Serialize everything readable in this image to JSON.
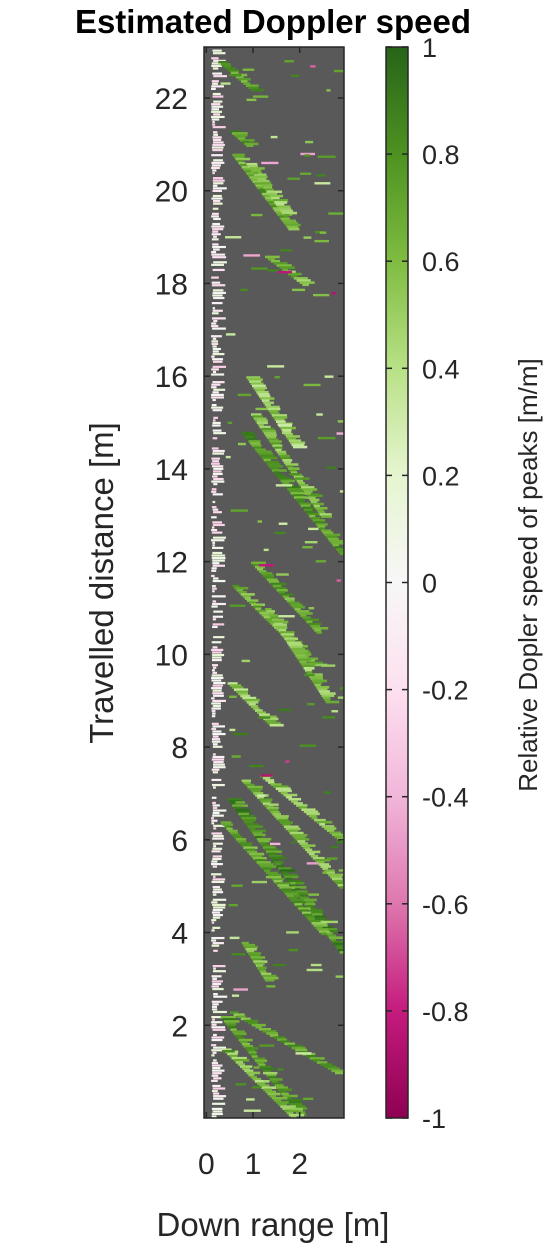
{
  "chart_data": {
    "type": "heatmap",
    "title": "Estimated Doppler speed",
    "xlabel": "Down range [m]",
    "ylabel": "Travelled distance [m]",
    "colorbar_label": "Relative Dopler speed of peaks [m/m]",
    "xlim": [
      -0.05,
      2.95
    ],
    "ylim": [
      0,
      23.1
    ],
    "x_ticks": [
      0,
      1,
      2
    ],
    "x_tick_labels": [
      "0",
      "1",
      "2"
    ],
    "y_ticks": [
      2,
      4,
      6,
      8,
      10,
      12,
      14,
      16,
      18,
      20,
      22
    ],
    "y_tick_labels": [
      "2",
      "4",
      "6",
      "8",
      "10",
      "12",
      "14",
      "16",
      "18",
      "20",
      "22"
    ],
    "clim": [
      -1,
      1
    ],
    "colorbar_ticks": [
      1,
      0.8,
      0.6,
      0.4,
      0.2,
      0,
      -0.2,
      -0.4,
      -0.6,
      -0.8,
      -1
    ],
    "colorbar_tick_labels": [
      "1",
      "0.8",
      "0.6",
      "0.4",
      "0.2",
      "0",
      "-0.2",
      "-0.4",
      "-0.6",
      "-0.8",
      "-1"
    ],
    "background_color": "#595959",
    "colormap": [
      "#8e0152",
      "#c51b7d",
      "#de77ae",
      "#f1b6da",
      "#fde0ef",
      "#f7f7f7",
      "#e6f5d0",
      "#b8e186",
      "#7fbc41",
      "#4d9221",
      "#276419"
    ],
    "streaks": [
      {
        "x0": 0.35,
        "y0": 2.2,
        "x1": 2.0,
        "y1": 0.1,
        "value": 0.75
      },
      {
        "x0": 0.4,
        "y0": 1.5,
        "x1": 1.9,
        "y1": 0.0,
        "value": 0.55
      },
      {
        "x0": 0.55,
        "y0": 2.3,
        "x1": 2.8,
        "y1": 1.0,
        "value": 0.7
      },
      {
        "x0": 0.8,
        "y0": 3.8,
        "x1": 1.3,
        "y1": 3.0,
        "value": 0.6
      },
      {
        "x0": 0.5,
        "y0": 6.9,
        "x1": 2.9,
        "y1": 3.6,
        "value": 0.8
      },
      {
        "x0": 0.35,
        "y0": 6.4,
        "x1": 2.5,
        "y1": 4.0,
        "value": 0.7
      },
      {
        "x0": 0.8,
        "y0": 7.3,
        "x1": 2.9,
        "y1": 5.0,
        "value": 0.6
      },
      {
        "x0": 1.2,
        "y0": 7.4,
        "x1": 2.9,
        "y1": 6.0,
        "value": 0.55
      },
      {
        "x0": 0.5,
        "y0": 9.4,
        "x1": 1.4,
        "y1": 8.5,
        "value": 0.5
      },
      {
        "x0": 0.6,
        "y0": 11.5,
        "x1": 2.3,
        "y1": 9.8,
        "value": 0.65
      },
      {
        "x0": 1.0,
        "y0": 12.0,
        "x1": 2.4,
        "y1": 10.5,
        "value": 0.7
      },
      {
        "x0": 1.3,
        "y0": 11.0,
        "x1": 2.6,
        "y1": 9.0,
        "value": 0.55
      },
      {
        "x0": 0.8,
        "y0": 14.8,
        "x1": 2.9,
        "y1": 12.2,
        "value": 0.75
      },
      {
        "x0": 1.0,
        "y0": 15.2,
        "x1": 2.5,
        "y1": 13.0,
        "value": 0.6
      },
      {
        "x0": 0.9,
        "y0": 16.0,
        "x1": 1.9,
        "y1": 14.5,
        "value": 0.5
      },
      {
        "x0": 1.3,
        "y0": 18.6,
        "x1": 2.1,
        "y1": 18.0,
        "value": 0.6
      },
      {
        "x0": 0.6,
        "y0": 20.8,
        "x1": 1.8,
        "y1": 19.2,
        "value": 0.7
      },
      {
        "x0": 0.9,
        "y0": 20.6,
        "x1": 1.7,
        "y1": 19.5,
        "value": 0.55
      },
      {
        "x0": 0.55,
        "y0": 21.3,
        "x1": 0.9,
        "y1": 21.0,
        "value": 0.8
      },
      {
        "x0": 0.3,
        "y0": 22.8,
        "x1": 1.0,
        "y1": 22.2,
        "value": 0.7
      }
    ],
    "near_band": {
      "x_min": 0.1,
      "x_max": 0.35,
      "value_range": [
        -0.3,
        0.2
      ]
    }
  }
}
